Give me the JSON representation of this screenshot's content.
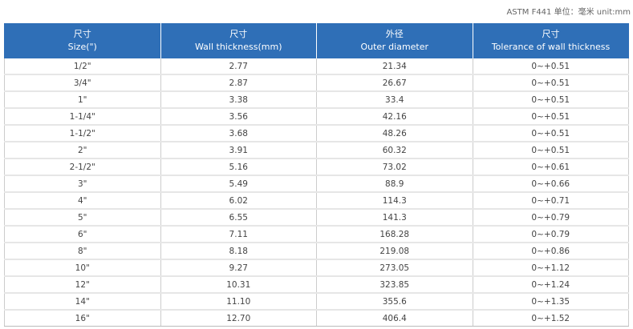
{
  "note": "ASTM F441 单位：毫米 unit:mm",
  "headers": [
    {
      "cn": "尺寸",
      "en": "Size(\")"
    },
    {
      "cn": "尺寸",
      "en": "Wall thickness(mm)"
    },
    {
      "cn": "外径",
      "en": "Outer diameter"
    },
    {
      "cn": "尺寸",
      "en": "Tolerance of wall thickness"
    }
  ],
  "rows": [
    [
      "1/2\"",
      "2.77",
      "21.34",
      "0~+0.51"
    ],
    [
      "3/4\"",
      "2.87",
      "26.67",
      "0~+0.51"
    ],
    [
      "1\"",
      "3.38",
      "33.4",
      "0~+0.51"
    ],
    [
      "1-1/4\"",
      "3.56",
      "42.16",
      "0~+0.51"
    ],
    [
      "1-1/2\"",
      "3.68",
      "48.26",
      "0~+0.51"
    ],
    [
      "2\"",
      "3.91",
      "60.32",
      "0~+0.51"
    ],
    [
      "2-1/2\"",
      "5.16",
      "73.02",
      "0~+0.61"
    ],
    [
      "3\"",
      "5.49",
      "88.9",
      "0~+0.66"
    ],
    [
      "4\"",
      "6.02",
      "114.3",
      "0~+0.71"
    ],
    [
      "5\"",
      "6.55",
      "141.3",
      "0~+0.79"
    ],
    [
      "6\"",
      "7.11",
      "168.28",
      "0~+0.79"
    ],
    [
      "8\"",
      "8.18",
      "219.08",
      "0~+0.86"
    ],
    [
      "10\"",
      "9.27",
      "273.05",
      "0~+1.12"
    ],
    [
      "12\"",
      "10.31",
      "323.85",
      "0~+1.24"
    ],
    [
      "14\"",
      "11.10",
      "355.6",
      "0~+1.35"
    ],
    [
      "16\"",
      "12.70",
      "406.4",
      "0~+1.52"
    ]
  ]
}
